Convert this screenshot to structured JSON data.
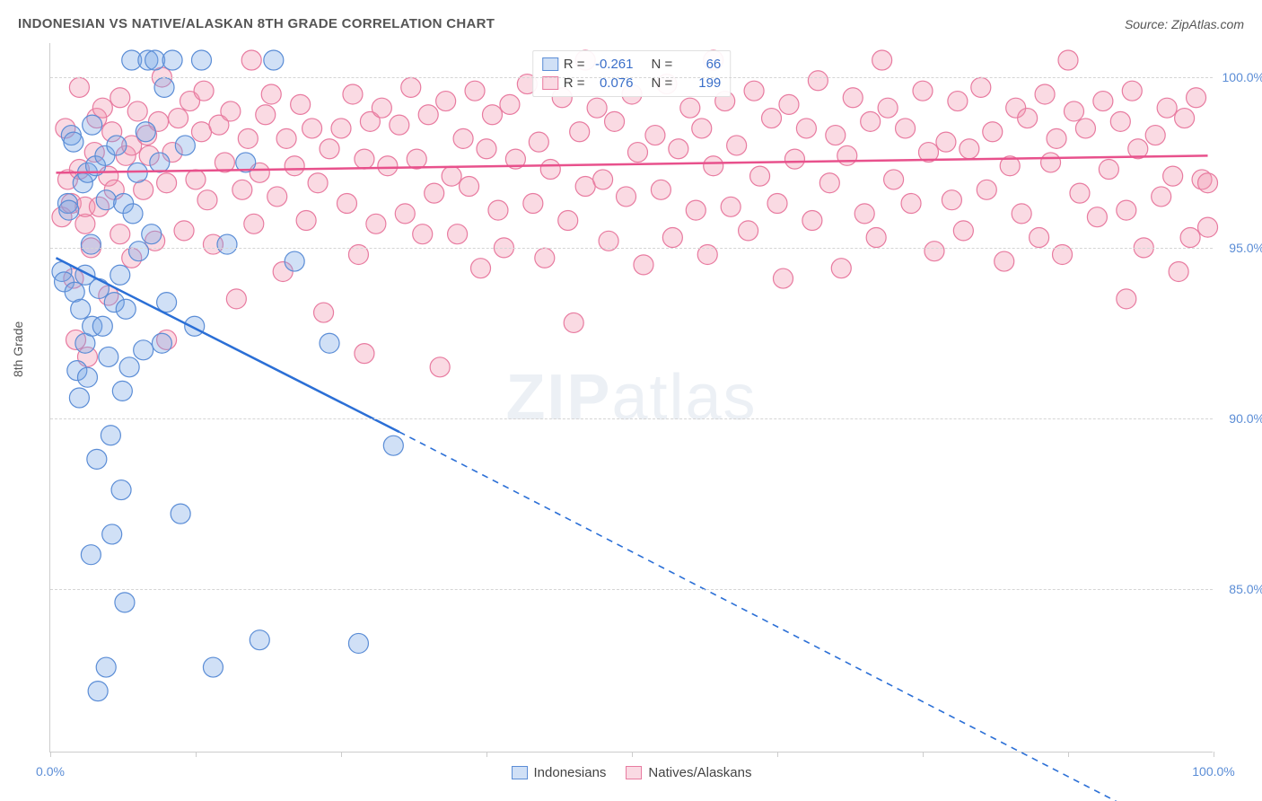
{
  "title": "INDONESIAN VS NATIVE/ALASKAN 8TH GRADE CORRELATION CHART",
  "source": "Source: ZipAtlas.com",
  "y_axis_label": "8th Grade",
  "watermark_a": "ZIP",
  "watermark_b": "atlas",
  "chart": {
    "type": "scatter",
    "x_range": [
      0,
      100
    ],
    "y_range": [
      80.2,
      101.0
    ],
    "y_ticks": [
      85.0,
      90.0,
      95.0,
      100.0
    ],
    "y_tick_labels": [
      "85.0%",
      "90.0%",
      "95.0%",
      "100.0%"
    ],
    "x_ticks": [
      0,
      12.5,
      25,
      37.5,
      50,
      62.5,
      75,
      87.5,
      100
    ],
    "x_tick_labels": {
      "0": "0.0%",
      "100": "100.0%"
    },
    "marker_radius": 11,
    "marker_stroke_width": 1.2,
    "trend_line_width": 2.5,
    "grid_color": "#d5d5d5",
    "axis_color": "#cccccc",
    "background_color": "#ffffff",
    "tick_label_color": "#5b8dd6",
    "watermark_color": "rgba(150,170,200,0.18)"
  },
  "series": {
    "blue": {
      "label": "Indonesians",
      "color_fill": "rgba(120,165,230,0.35)",
      "color_stroke": "#5b8dd6",
      "line_color": "#2b6fd6",
      "R": "-0.261",
      "N": "66",
      "trend": {
        "x1": 0.5,
        "y1": 94.7,
        "x2": 30,
        "y2": 89.6,
        "x2_dash": 96,
        "y2_dash": 78.0
      },
      "points": [
        [
          1.0,
          94.3
        ],
        [
          1.2,
          94.0
        ],
        [
          1.5,
          96.3
        ],
        [
          1.6,
          96.1
        ],
        [
          1.8,
          98.3
        ],
        [
          2.0,
          98.1
        ],
        [
          2.1,
          93.7
        ],
        [
          2.3,
          91.4
        ],
        [
          2.5,
          90.6
        ],
        [
          2.6,
          93.2
        ],
        [
          2.8,
          96.9
        ],
        [
          3.0,
          92.2
        ],
        [
          3.0,
          94.2
        ],
        [
          3.2,
          91.2
        ],
        [
          3.2,
          97.2
        ],
        [
          3.5,
          86.0
        ],
        [
          3.5,
          95.1
        ],
        [
          3.6,
          92.7
        ],
        [
          3.6,
          98.6
        ],
        [
          3.9,
          97.4
        ],
        [
          4.0,
          88.8
        ],
        [
          4.1,
          82.0
        ],
        [
          4.2,
          93.8
        ],
        [
          4.5,
          92.7
        ],
        [
          4.7,
          97.7
        ],
        [
          4.8,
          82.7
        ],
        [
          4.8,
          96.4
        ],
        [
          5.0,
          91.8
        ],
        [
          5.2,
          89.5
        ],
        [
          5.3,
          86.6
        ],
        [
          5.5,
          93.4
        ],
        [
          5.7,
          98.0
        ],
        [
          6.0,
          94.2
        ],
        [
          6.1,
          87.9
        ],
        [
          6.2,
          90.8
        ],
        [
          6.3,
          96.3
        ],
        [
          6.4,
          84.6
        ],
        [
          6.5,
          93.2
        ],
        [
          6.8,
          91.5
        ],
        [
          7.0,
          100.5
        ],
        [
          7.1,
          96.0
        ],
        [
          7.5,
          97.2
        ],
        [
          7.6,
          94.9
        ],
        [
          8.0,
          92.0
        ],
        [
          8.2,
          98.4
        ],
        [
          8.4,
          100.5
        ],
        [
          8.7,
          95.4
        ],
        [
          9.0,
          100.5
        ],
        [
          9.4,
          97.5
        ],
        [
          9.6,
          92.2
        ],
        [
          9.8,
          99.7
        ],
        [
          10.0,
          93.4
        ],
        [
          10.5,
          100.5
        ],
        [
          11.2,
          87.2
        ],
        [
          11.6,
          98.0
        ],
        [
          12.4,
          92.7
        ],
        [
          13.0,
          100.5
        ],
        [
          14.0,
          82.7
        ],
        [
          15.2,
          95.1
        ],
        [
          16.8,
          97.5
        ],
        [
          18.0,
          83.5
        ],
        [
          19.2,
          100.5
        ],
        [
          21.0,
          94.6
        ],
        [
          24.0,
          92.2
        ],
        [
          26.5,
          83.4
        ],
        [
          29.5,
          89.2
        ]
      ]
    },
    "pink": {
      "label": "Natives/Alaskans",
      "color_fill": "rgba(240,150,175,0.35)",
      "color_stroke": "#e87ba0",
      "line_color": "#e8518c",
      "R": "0.076",
      "N": "199",
      "trend": {
        "x1": 0.5,
        "y1": 97.2,
        "x2": 99.5,
        "y2": 97.7
      },
      "points": [
        [
          1.0,
          95.9
        ],
        [
          1.3,
          98.5
        ],
        [
          1.5,
          97.0
        ],
        [
          1.8,
          96.3
        ],
        [
          2.0,
          94.1
        ],
        [
          2.2,
          92.3
        ],
        [
          2.5,
          97.3
        ],
        [
          2.5,
          99.7
        ],
        [
          3.0,
          95.7
        ],
        [
          3.0,
          96.2
        ],
        [
          3.2,
          91.8
        ],
        [
          3.5,
          95.0
        ],
        [
          3.8,
          97.8
        ],
        [
          4.0,
          98.8
        ],
        [
          4.2,
          96.2
        ],
        [
          4.5,
          99.1
        ],
        [
          5.0,
          97.1
        ],
        [
          5.0,
          93.6
        ],
        [
          5.3,
          98.4
        ],
        [
          5.5,
          96.7
        ],
        [
          6.0,
          99.4
        ],
        [
          6.0,
          95.4
        ],
        [
          6.5,
          97.7
        ],
        [
          7.0,
          98.0
        ],
        [
          7.0,
          94.7
        ],
        [
          7.5,
          99.0
        ],
        [
          8.0,
          96.7
        ],
        [
          8.3,
          98.3
        ],
        [
          8.5,
          97.7
        ],
        [
          9.0,
          95.2
        ],
        [
          9.3,
          98.7
        ],
        [
          9.6,
          100.0
        ],
        [
          10.0,
          96.9
        ],
        [
          10.0,
          92.3
        ],
        [
          10.5,
          97.8
        ],
        [
          11.0,
          98.8
        ],
        [
          11.5,
          95.5
        ],
        [
          12.0,
          99.3
        ],
        [
          12.5,
          97.0
        ],
        [
          13.0,
          98.4
        ],
        [
          13.2,
          99.6
        ],
        [
          13.5,
          96.4
        ],
        [
          14.0,
          95.1
        ],
        [
          14.5,
          98.6
        ],
        [
          15.0,
          97.5
        ],
        [
          15.5,
          99.0
        ],
        [
          16.0,
          93.5
        ],
        [
          16.5,
          96.7
        ],
        [
          17.0,
          98.2
        ],
        [
          17.3,
          100.5
        ],
        [
          17.5,
          95.7
        ],
        [
          18.0,
          97.2
        ],
        [
          18.5,
          98.9
        ],
        [
          19.0,
          99.5
        ],
        [
          19.5,
          96.5
        ],
        [
          20.0,
          94.3
        ],
        [
          20.3,
          98.2
        ],
        [
          21.0,
          97.4
        ],
        [
          21.5,
          99.2
        ],
        [
          22.0,
          95.8
        ],
        [
          22.5,
          98.5
        ],
        [
          23.0,
          96.9
        ],
        [
          23.5,
          93.1
        ],
        [
          24.0,
          97.9
        ],
        [
          25.0,
          98.5
        ],
        [
          25.5,
          96.3
        ],
        [
          26.0,
          99.5
        ],
        [
          26.5,
          94.8
        ],
        [
          27.0,
          91.9
        ],
        [
          27.0,
          97.6
        ],
        [
          27.5,
          98.7
        ],
        [
          28.0,
          95.7
        ],
        [
          28.5,
          99.1
        ],
        [
          29.0,
          97.4
        ],
        [
          30.0,
          98.6
        ],
        [
          30.5,
          96.0
        ],
        [
          31.0,
          99.7
        ],
        [
          31.5,
          97.6
        ],
        [
          32.0,
          95.4
        ],
        [
          32.5,
          98.9
        ],
        [
          33.0,
          96.6
        ],
        [
          33.5,
          91.5
        ],
        [
          34.0,
          99.3
        ],
        [
          34.5,
          97.1
        ],
        [
          35.0,
          95.4
        ],
        [
          35.5,
          98.2
        ],
        [
          36.0,
          96.8
        ],
        [
          36.5,
          99.6
        ],
        [
          37.0,
          94.4
        ],
        [
          37.5,
          97.9
        ],
        [
          38.0,
          98.9
        ],
        [
          38.5,
          96.1
        ],
        [
          39.0,
          95.0
        ],
        [
          39.5,
          99.2
        ],
        [
          40.0,
          97.6
        ],
        [
          41.0,
          99.8
        ],
        [
          41.5,
          96.3
        ],
        [
          42.0,
          98.1
        ],
        [
          42.5,
          94.7
        ],
        [
          43.0,
          97.3
        ],
        [
          44.0,
          99.4
        ],
        [
          44.5,
          95.8
        ],
        [
          45.0,
          92.8
        ],
        [
          45.5,
          98.4
        ],
        [
          46.0,
          96.8
        ],
        [
          46.0,
          100.5
        ],
        [
          47.0,
          99.1
        ],
        [
          47.5,
          97.0
        ],
        [
          48.0,
          95.2
        ],
        [
          48.5,
          98.7
        ],
        [
          49.5,
          96.5
        ],
        [
          50.0,
          99.5
        ],
        [
          50.5,
          97.8
        ],
        [
          51.0,
          94.5
        ],
        [
          52.0,
          98.3
        ],
        [
          52.5,
          96.7
        ],
        [
          53.0,
          99.8
        ],
        [
          53.5,
          95.3
        ],
        [
          54.0,
          97.9
        ],
        [
          55.0,
          99.1
        ],
        [
          55.5,
          96.1
        ],
        [
          56.0,
          98.5
        ],
        [
          56.5,
          94.8
        ],
        [
          57.0,
          100.5
        ],
        [
          57.0,
          97.4
        ],
        [
          58.0,
          99.3
        ],
        [
          58.5,
          96.2
        ],
        [
          59.0,
          98.0
        ],
        [
          60.0,
          95.5
        ],
        [
          60.5,
          99.6
        ],
        [
          61.0,
          97.1
        ],
        [
          62.0,
          98.8
        ],
        [
          62.5,
          96.3
        ],
        [
          63.0,
          94.1
        ],
        [
          63.5,
          99.2
        ],
        [
          64.0,
          97.6
        ],
        [
          65.0,
          98.5
        ],
        [
          65.5,
          95.8
        ],
        [
          66.0,
          99.9
        ],
        [
          67.0,
          96.9
        ],
        [
          67.5,
          98.3
        ],
        [
          68.0,
          94.4
        ],
        [
          68.5,
          97.7
        ],
        [
          69.0,
          99.4
        ],
        [
          70.0,
          96.0
        ],
        [
          70.5,
          98.7
        ],
        [
          71.0,
          95.3
        ],
        [
          71.5,
          100.5
        ],
        [
          72.0,
          99.1
        ],
        [
          72.5,
          97.0
        ],
        [
          73.5,
          98.5
        ],
        [
          74.0,
          96.3
        ],
        [
          75.0,
          99.6
        ],
        [
          75.5,
          97.8
        ],
        [
          76.0,
          94.9
        ],
        [
          77.0,
          98.1
        ],
        [
          77.5,
          96.4
        ],
        [
          78.0,
          99.3
        ],
        [
          78.5,
          95.5
        ],
        [
          79.0,
          97.9
        ],
        [
          80.0,
          99.7
        ],
        [
          80.5,
          96.7
        ],
        [
          81.0,
          98.4
        ],
        [
          82.0,
          94.6
        ],
        [
          82.5,
          97.4
        ],
        [
          83.0,
          99.1
        ],
        [
          83.5,
          96.0
        ],
        [
          84.0,
          98.8
        ],
        [
          85.0,
          95.3
        ],
        [
          85.5,
          99.5
        ],
        [
          86.0,
          97.5
        ],
        [
          86.5,
          98.2
        ],
        [
          87.0,
          94.8
        ],
        [
          87.5,
          100.5
        ],
        [
          88.0,
          99.0
        ],
        [
          88.5,
          96.6
        ],
        [
          89.0,
          98.5
        ],
        [
          90.0,
          95.9
        ],
        [
          90.5,
          99.3
        ],
        [
          91.0,
          97.3
        ],
        [
          92.0,
          98.7
        ],
        [
          92.5,
          93.5
        ],
        [
          92.5,
          96.1
        ],
        [
          93.0,
          99.6
        ],
        [
          93.5,
          97.9
        ],
        [
          94.0,
          95.0
        ],
        [
          95.0,
          98.3
        ],
        [
          95.5,
          96.5
        ],
        [
          96.0,
          99.1
        ],
        [
          96.5,
          97.1
        ],
        [
          97.0,
          94.3
        ],
        [
          97.5,
          98.8
        ],
        [
          98.0,
          95.3
        ],
        [
          98.5,
          99.4
        ],
        [
          99.0,
          97.0
        ],
        [
          99.5,
          96.9
        ],
        [
          99.5,
          95.6
        ]
      ]
    }
  },
  "legend_stats": {
    "r_label": "R =",
    "n_label": "N ="
  },
  "bottom_legend": [
    "Indonesians",
    "Natives/Alaskans"
  ]
}
